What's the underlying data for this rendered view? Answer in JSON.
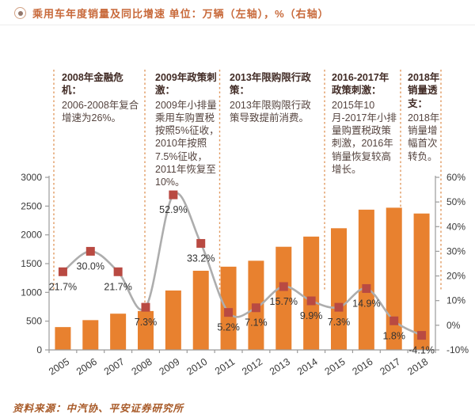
{
  "header": {
    "title": "乘用车年度销量及同比增速 单位：万辆（左轴），%（右轴）"
  },
  "annotations": [
    {
      "title": "2008年金融危机：",
      "body": "2006-2008年复合增速为26%。"
    },
    {
      "title": "2009年政策刺激：",
      "body": "2009年小排量乘用车购置税按照5%征收，2010年按照7.5%征收，2011年恢复至10%。"
    },
    {
      "title": "2013年限购限行政策：",
      "body": "2013年限购限行政策导致提前消费。"
    },
    {
      "title": "2016-2017年政策刺激：",
      "body": "2015年10月-2017年小排量购置税政策刺激，2016年销量恢复较高增长。"
    },
    {
      "title": "2018年销量透支：",
      "body": "2018年销量增幅首次转负。"
    }
  ],
  "chart_data": {
    "type": "bar+line",
    "title": "乘用车年度销量及同比增速",
    "units": {
      "left": "万辆",
      "right": "%"
    },
    "categories": [
      "2005",
      "2006",
      "2007",
      "2008",
      "2009",
      "2010",
      "2011",
      "2012",
      "2013",
      "2014",
      "2015",
      "2016",
      "2017",
      "2018"
    ],
    "series": [
      {
        "name": "年度销量（万辆）",
        "type": "bar",
        "axis": "left",
        "values": [
          397,
          518,
          630,
          676,
          1033,
          1376,
          1447,
          1550,
          1793,
          1970,
          2115,
          2438,
          2472,
          2371
        ]
      },
      {
        "name": "同比增速（%）",
        "type": "line",
        "axis": "right",
        "values": [
          21.7,
          30.0,
          21.7,
          7.3,
          52.9,
          33.2,
          5.2,
          7.1,
          15.7,
          9.9,
          7.3,
          14.9,
          1.8,
          -4.1
        ]
      }
    ],
    "point_labels": [
      "21.7%",
      "30.0%",
      "21.7%",
      "7.3%",
      "52.9%",
      "33.2%",
      "5.2%",
      "7.1%",
      "15.7%",
      "9.9%",
      "7.3%",
      "14.9%",
      "1.8%",
      "-4.1%"
    ],
    "left_axis": {
      "min": 0,
      "max": 3000,
      "step": 500,
      "ticks": [
        "0",
        "500",
        "1000",
        "1500",
        "2000",
        "2500",
        "3000"
      ]
    },
    "right_axis": {
      "min": -10,
      "max": 60,
      "step": 10,
      "ticks": [
        "-10%",
        "0%",
        "10%",
        "20%",
        "30%",
        "40%",
        "50%",
        "60%"
      ]
    },
    "grid": false,
    "legend": "none",
    "colors": {
      "bar": "#E8812F",
      "line": "#ADADAD",
      "marker": "#B94A42",
      "dashed_guides": "#E09A60",
      "axis": "#9B9B9B",
      "axis_text": "#3A3A3A",
      "label_text": "#333333"
    }
  },
  "source": {
    "text": "资料来源：中汽协、平安证券研究所"
  }
}
